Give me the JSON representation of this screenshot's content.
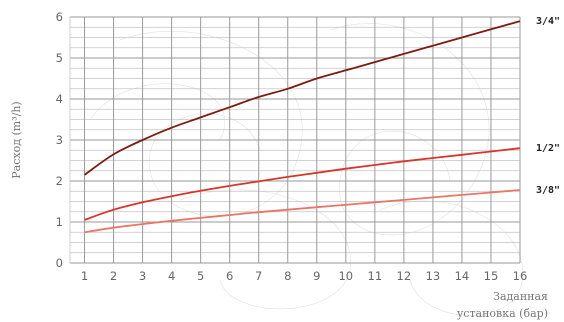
{
  "chart_data": {
    "type": "line",
    "title": "",
    "xlabel_lines": [
      "Заданная",
      "установка (бар)"
    ],
    "ylabel": "Расход (m³/h)",
    "x_ticks": [
      1,
      2,
      3,
      4,
      5,
      6,
      7,
      8,
      9,
      10,
      11,
      12,
      13,
      14,
      15,
      16
    ],
    "y_ticks": [
      0,
      1,
      2,
      3,
      4,
      5,
      6
    ],
    "xlim": [
      0.5,
      16
    ],
    "ylim": [
      0,
      6
    ],
    "grid": true,
    "series": [
      {
        "name": "3/4\"",
        "color": "#7a1d12",
        "x": [
          1,
          2,
          3,
          4,
          5,
          6,
          7,
          8,
          9,
          10,
          11,
          12,
          13,
          14,
          15,
          16
        ],
        "y": [
          2.15,
          2.65,
          3.0,
          3.3,
          3.55,
          3.8,
          4.05,
          4.25,
          4.5,
          4.7,
          4.9,
          5.1,
          5.3,
          5.5,
          5.7,
          5.9
        ]
      },
      {
        "name": "1/2\"",
        "color": "#d8362a",
        "x": [
          1,
          2,
          3,
          4,
          5,
          6,
          7,
          8,
          9,
          10,
          11,
          12,
          13,
          14,
          15,
          16
        ],
        "y": [
          1.05,
          1.3,
          1.48,
          1.63,
          1.76,
          1.88,
          1.99,
          2.1,
          2.2,
          2.3,
          2.39,
          2.48,
          2.56,
          2.64,
          2.72,
          2.8
        ]
      },
      {
        "name": "3/8\"",
        "color": "#e8766a",
        "x": [
          1,
          2,
          3,
          4,
          5,
          6,
          7,
          8,
          9,
          10,
          11,
          12,
          13,
          14,
          15,
          16
        ],
        "y": [
          0.75,
          0.86,
          0.95,
          1.03,
          1.1,
          1.17,
          1.24,
          1.3,
          1.36,
          1.42,
          1.48,
          1.54,
          1.6,
          1.66,
          1.72,
          1.78
        ]
      }
    ]
  }
}
